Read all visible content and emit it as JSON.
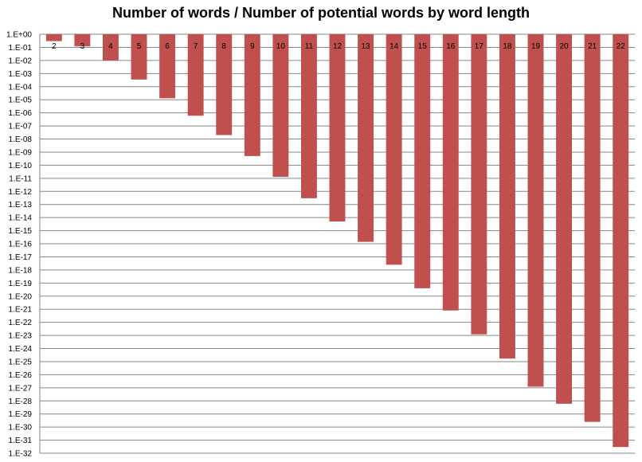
{
  "chart_data": {
    "type": "bar",
    "title": "Number of words / Number of potential words by word length",
    "xlabel": "",
    "ylabel": "",
    "yscale": "log10",
    "ylim": [
      1e-32,
      1
    ],
    "grid": true,
    "legend": "none",
    "bar_color": "#C0504D",
    "grid_color": "#868686",
    "categories": [
      "2",
      "3",
      "4",
      "5",
      "6",
      "7",
      "8",
      "9",
      "10",
      "11",
      "12",
      "13",
      "14",
      "15",
      "16",
      "17",
      "18",
      "19",
      "20",
      "21",
      "22"
    ],
    "values": [
      0.3,
      0.12,
      0.01,
      0.00035,
      1.3e-05,
      6e-07,
      2e-08,
      5e-10,
      1.3e-11,
      3e-13,
      5e-15,
      1.4e-16,
      2.5e-18,
      4e-20,
      8e-22,
      1.2e-23,
      1.7e-25,
      1.2e-27,
      6e-29,
      2.5e-30,
      3e-32
    ],
    "y_tick_labels": [
      "1.E+00",
      "1.E-01",
      "1.E-02",
      "1.E-03",
      "1.E-04",
      "1.E-05",
      "1.E-06",
      "1.E-07",
      "1.E-08",
      "1.E-09",
      "1.E-10",
      "1.E-11",
      "1.E-12",
      "1.E-13",
      "1.E-14",
      "1.E-15",
      "1.E-16",
      "1.E-17",
      "1.E-18",
      "1.E-19",
      "1.E-20",
      "1.E-21",
      "1.E-22",
      "1.E-23",
      "1.E-24",
      "1.E-25",
      "1.E-26",
      "1.E-27",
      "1.E-28",
      "1.E-29",
      "1.E-30",
      "1.E-31",
      "1.E-32"
    ]
  }
}
